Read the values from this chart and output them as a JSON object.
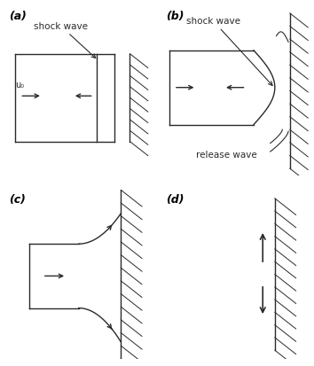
{
  "bg_color": "#ffffff",
  "line_color": "#2a2a2a",
  "label_a": "(a)",
  "label_b": "(b)",
  "label_c": "(c)",
  "label_d": "(d)",
  "text_shock_wave": "shock wave",
  "text_release_wave": "release wave",
  "text_u0": "u₀",
  "font_size_label": 9,
  "font_size_text": 7.5
}
